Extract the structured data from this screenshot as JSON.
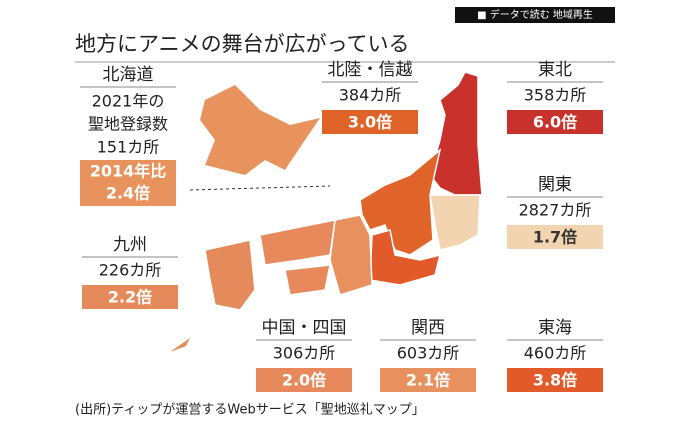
{
  "header": {
    "tag": "■ データで読む 地域再生",
    "title": "地方にアニメの舞台が広がっている"
  },
  "hokkaido": {
    "name": "北海道",
    "lines": [
      "2021年の",
      "聖地登録数",
      "151カ所"
    ],
    "badge": [
      "2014年比",
      "2.4倍"
    ],
    "color": "#e8935e"
  },
  "regions": [
    {
      "name": "北陸・信越",
      "count": "384カ所",
      "ratio": "3.0倍",
      "color": "#e0642a"
    },
    {
      "name": "東北",
      "count": "358カ所",
      "ratio": "6.0倍",
      "color": "#c8312c"
    },
    {
      "name": "関東",
      "count": "2827カ所",
      "ratio": "1.7倍",
      "color": "#f2d4b0"
    },
    {
      "name": "九州",
      "count": "226カ所",
      "ratio": "2.2倍",
      "color": "#e58a5a"
    },
    {
      "name": "中国・四国",
      "count": "306カ所",
      "ratio": "2.0倍",
      "color": "#e8895c"
    },
    {
      "name": "関西",
      "count": "603カ所",
      "ratio": "2.1倍",
      "color": "#e9905f"
    },
    {
      "name": "東海",
      "count": "460カ所",
      "ratio": "3.8倍",
      "color": "#e2592a"
    }
  ],
  "source": "(出所)ティップが運営するWebサービス「聖地巡礼マップ」"
}
